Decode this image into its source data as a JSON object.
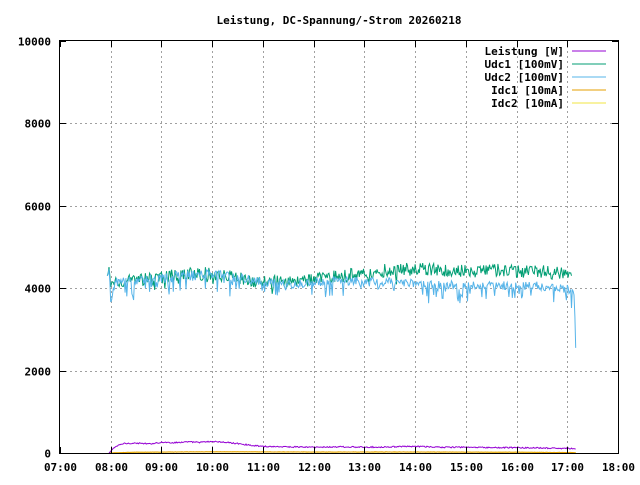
{
  "chart_data": {
    "type": "line",
    "title": "Leistung, DC-Spannung/-Strom 20260218",
    "xlabel": "",
    "ylabel": "",
    "x_axis": {
      "type": "time",
      "range": [
        "07:00",
        "18:00"
      ],
      "ticks": [
        "07:00",
        "08:00",
        "09:00",
        "10:00",
        "11:00",
        "12:00",
        "13:00",
        "14:00",
        "15:00",
        "16:00",
        "17:00",
        "18:00"
      ]
    },
    "y_axis": {
      "range": [
        0,
        10000
      ],
      "ticks": [
        "0",
        "2000",
        "4000",
        "6000",
        "8000",
        "10000"
      ]
    },
    "grid": true,
    "legend_position": "top-right",
    "series": [
      {
        "name": "Leistung [W]",
        "color": "#9400d3",
        "x": [
          "07:58",
          "08:05",
          "08:15",
          "08:30",
          "08:45",
          "09:00",
          "09:15",
          "09:30",
          "09:45",
          "10:00",
          "10:15",
          "10:30",
          "10:45",
          "11:00",
          "11:30",
          "12:00",
          "12:30",
          "13:00",
          "13:30",
          "14:00",
          "14:30",
          "15:00",
          "15:30",
          "16:00",
          "16:30",
          "17:00",
          "17:10"
        ],
        "y": [
          0,
          150,
          230,
          240,
          220,
          260,
          250,
          270,
          260,
          280,
          260,
          230,
          190,
          160,
          150,
          140,
          150,
          140,
          150,
          160,
          140,
          140,
          130,
          130,
          120,
          110,
          100
        ]
      },
      {
        "name": "Udc1 [100mV]",
        "color": "#009e73",
        "x": [
          "07:56",
          "07:58",
          "08:00",
          "08:05",
          "08:15",
          "08:30",
          "09:00",
          "09:30",
          "10:00",
          "10:30",
          "11:00",
          "11:30",
          "12:00",
          "12:30",
          "13:00",
          "13:30",
          "14:00",
          "14:30",
          "15:00",
          "15:30",
          "16:00",
          "16:30",
          "17:00",
          "17:05"
        ],
        "y": [
          4300,
          4450,
          4000,
          4200,
          4150,
          4200,
          4250,
          4350,
          4350,
          4250,
          4150,
          4150,
          4200,
          4300,
          4350,
          4450,
          4450,
          4450,
          4400,
          4450,
          4400,
          4400,
          4350,
          4300
        ]
      },
      {
        "name": "Udc2 [100mV]",
        "color": "#56b4e9",
        "x": [
          "07:56",
          "07:58",
          "08:00",
          "08:05",
          "08:15",
          "08:30",
          "09:00",
          "09:30",
          "10:00",
          "10:30",
          "11:00",
          "11:30",
          "12:00",
          "12:30",
          "13:00",
          "13:30",
          "14:00",
          "14:30",
          "15:00",
          "15:30",
          "16:00",
          "16:30",
          "17:00",
          "17:08",
          "17:10"
        ],
        "y": [
          4300,
          4400,
          3700,
          4150,
          4150,
          4200,
          4250,
          4350,
          4350,
          4250,
          4150,
          4100,
          4150,
          4200,
          4150,
          4150,
          4100,
          4100,
          4050,
          4100,
          4050,
          4050,
          4000,
          3900,
          2550
        ]
      },
      {
        "name": "Idc1 [10mA]",
        "color": "#e69f00",
        "x": [
          "07:58",
          "08:30",
          "10:00",
          "12:00",
          "14:00",
          "16:00",
          "17:10"
        ],
        "y": [
          0,
          20,
          30,
          25,
          25,
          20,
          10
        ]
      },
      {
        "name": "Idc2 [10mA]",
        "color": "#f0e442",
        "x": [
          "07:58",
          "08:30",
          "10:00",
          "12:00",
          "14:00",
          "16:00",
          "17:10"
        ],
        "y": [
          0,
          18,
          28,
          22,
          22,
          18,
          8
        ]
      }
    ]
  }
}
